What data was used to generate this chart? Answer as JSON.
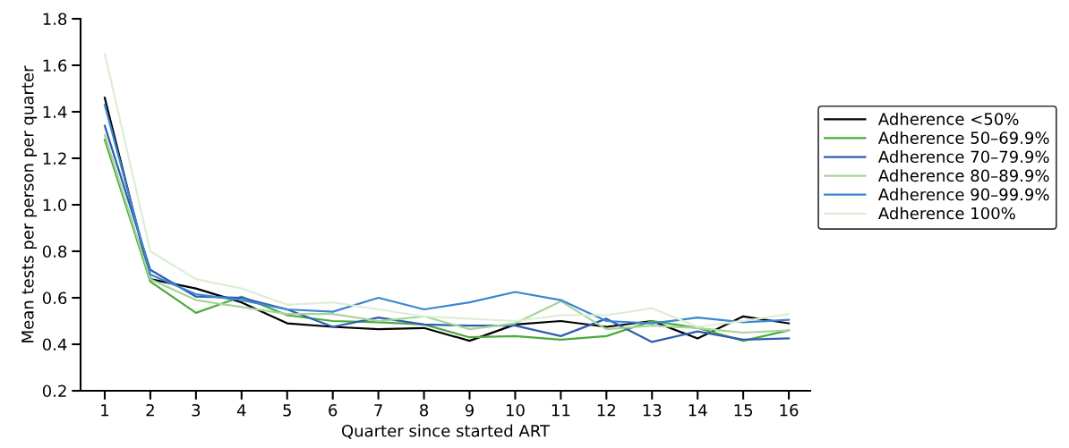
{
  "chart_data": {
    "type": "line",
    "xlabel": "Quarter since started ART",
    "ylabel": "Mean tests per person per quarter",
    "categories": [
      "1",
      "2",
      "3",
      "4",
      "5",
      "6",
      "7",
      "8",
      "9",
      "10",
      "11",
      "12",
      "13",
      "14",
      "15",
      "16"
    ],
    "ylim": [
      0.2,
      1.8
    ],
    "yticks": [
      {
        "value": 0.2,
        "label": "0.2"
      },
      {
        "value": 0.4,
        "label": "0.4"
      },
      {
        "value": 0.6,
        "label": "0.6"
      },
      {
        "value": 0.8,
        "label": "0.8"
      },
      {
        "value": 1.0,
        "label": "1.0"
      },
      {
        "value": 1.2,
        "label": "1.2"
      },
      {
        "value": 1.4,
        "label": "1.4"
      },
      {
        "value": 1.6,
        "label": "1.6"
      },
      {
        "value": 1.8,
        "label": "1.8"
      }
    ],
    "legend": "right",
    "grid": false,
    "line_style": "solid",
    "series": [
      {
        "name": "Adherence <50%",
        "color": "#000000",
        "values": [
          1.46,
          0.68,
          0.64,
          0.58,
          0.49,
          0.475,
          0.465,
          0.47,
          0.415,
          0.485,
          0.5,
          0.475,
          0.5,
          0.425,
          0.52,
          0.49
        ]
      },
      {
        "name": "Adherence 50–69.9%",
        "color": "#4aaa3a",
        "values": [
          1.28,
          0.67,
          0.535,
          0.605,
          0.525,
          0.5,
          0.495,
          0.485,
          0.43,
          0.435,
          0.42,
          0.435,
          0.5,
          0.47,
          0.415,
          0.46
        ]
      },
      {
        "name": "Adherence 70–79.9%",
        "color": "#2f5db0",
        "values": [
          1.34,
          0.72,
          0.605,
          0.6,
          0.55,
          0.475,
          0.515,
          0.485,
          0.48,
          0.48,
          0.435,
          0.51,
          0.41,
          0.455,
          0.42,
          0.425
        ]
      },
      {
        "name": "Adherence 80–89.9%",
        "color": "#a8d49a",
        "values": [
          1.3,
          0.68,
          0.59,
          0.56,
          0.53,
          0.53,
          0.5,
          0.52,
          0.465,
          0.49,
          0.585,
          0.465,
          0.48,
          0.47,
          0.45,
          0.46
        ]
      },
      {
        "name": "Adherence 90–99.9%",
        "color": "#3a86d0",
        "values": [
          1.43,
          0.7,
          0.615,
          0.59,
          0.55,
          0.54,
          0.6,
          0.55,
          0.58,
          0.625,
          0.59,
          0.5,
          0.49,
          0.515,
          0.495,
          0.505
        ]
      },
      {
        "name": "Adherence 100%",
        "color": "#ddeed6",
        "values": [
          1.65,
          0.8,
          0.68,
          0.64,
          0.57,
          0.58,
          0.55,
          0.52,
          0.51,
          0.5,
          0.525,
          0.525,
          0.555,
          0.475,
          0.5,
          0.53
        ]
      }
    ]
  }
}
